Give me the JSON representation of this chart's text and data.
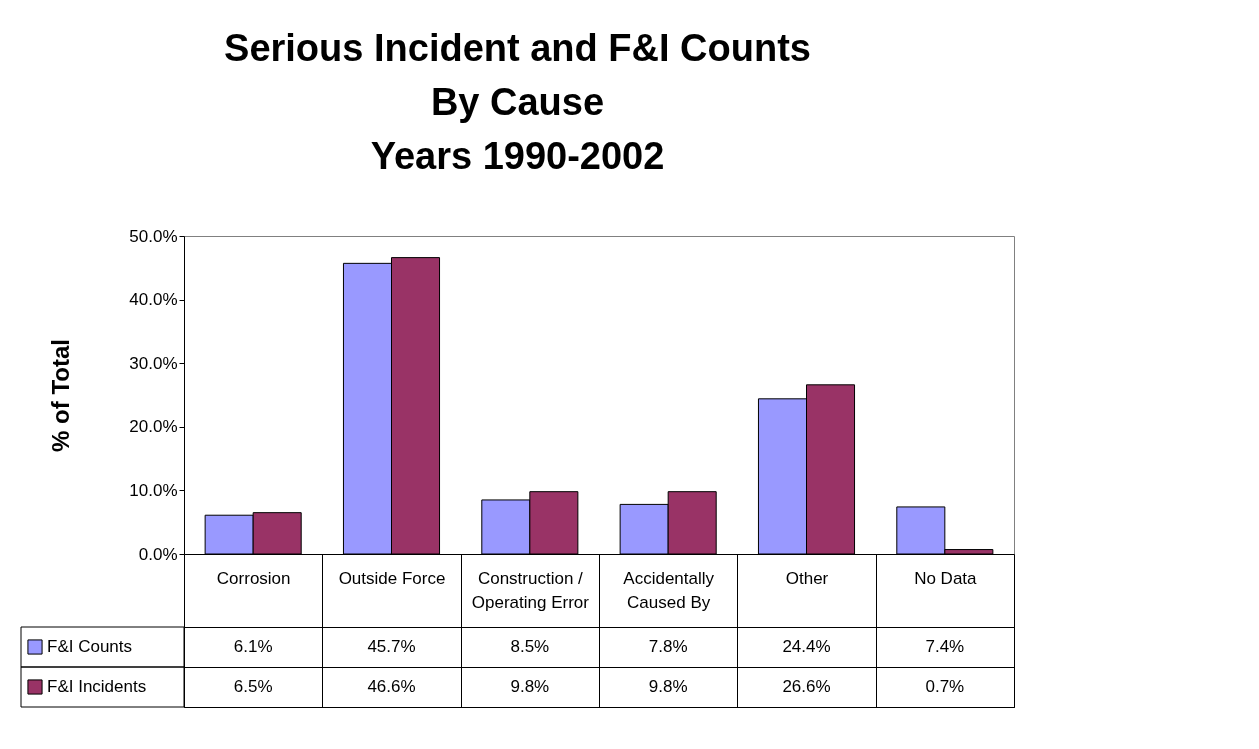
{
  "chart_data": {
    "type": "bar",
    "title": "Serious Incident and F&I Counts\nBy Cause\nYears 1990-2002",
    "ylabel": "% of Total",
    "categories": [
      "Corrosion",
      "Outside Force",
      "Construction / Operating Error",
      "Accidentally Caused By",
      "Other",
      "No Data"
    ],
    "series": [
      {
        "name": "F&I Counts",
        "color": "#9999ff",
        "values": [
          6.1,
          45.7,
          8.5,
          7.8,
          24.4,
          7.4
        ],
        "value_labels": [
          "6.1%",
          "45.7%",
          "8.5%",
          "7.8%",
          "24.4%",
          "7.4%"
        ]
      },
      {
        "name": "F&I Incidents",
        "color": "#993366",
        "values": [
          6.5,
          46.6,
          9.8,
          9.8,
          26.6,
          0.7
        ],
        "value_labels": [
          "6.5%",
          "46.6%",
          "9.8%",
          "9.8%",
          "26.6%",
          "0.7%"
        ]
      }
    ],
    "ylim": [
      0,
      50
    ],
    "yticks": [
      {
        "value": 0,
        "label": "0.0%"
      },
      {
        "value": 10,
        "label": "10.0%"
      },
      {
        "value": 20,
        "label": "20.0%"
      },
      {
        "value": 30,
        "label": "30.0%"
      },
      {
        "value": 40,
        "label": "40.0%"
      },
      {
        "value": 50,
        "label": "50.0%"
      }
    ],
    "grid": false,
    "legend": "bottom left"
  }
}
